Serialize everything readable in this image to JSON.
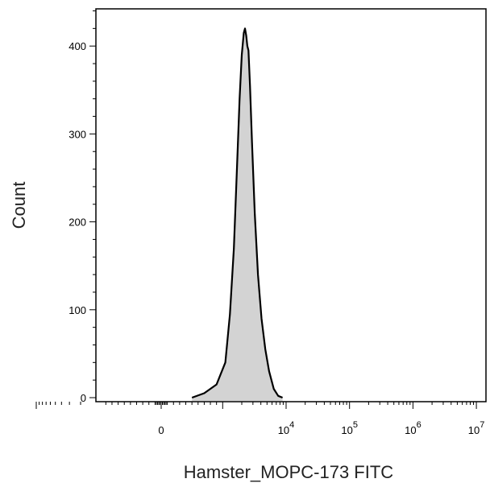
{
  "chart_data": {
    "type": "area",
    "title": "",
    "xlabel": "Hamster_MOPC-173 FITC",
    "ylabel": "Count",
    "x_scale": "biexponential",
    "ylim": [
      0,
      460
    ],
    "y_ticks": [
      {
        "value": 0,
        "label": "0"
      },
      {
        "value": 100,
        "label": "100"
      },
      {
        "value": 200,
        "label": "200"
      },
      {
        "value": 300,
        "label": "300"
      },
      {
        "value": 400,
        "label": "400"
      }
    ],
    "x_ticks": [
      {
        "value": 0,
        "label": "0",
        "base": "0",
        "exp": ""
      },
      {
        "value": 10000,
        "label": "10^4",
        "base": "10",
        "exp": "4"
      },
      {
        "value": 100000,
        "label": "10^5",
        "base": "10",
        "exp": "5"
      },
      {
        "value": 1000000,
        "label": "10^6",
        "base": "10",
        "exp": "6"
      },
      {
        "value": 10000000,
        "label": "10^7",
        "base": "10",
        "exp": "7"
      }
    ],
    "series": [
      {
        "fill": "#d3d3d3",
        "stroke": "#000000",
        "points": [
          [
            500,
            0
          ],
          [
            700,
            5
          ],
          [
            900,
            15
          ],
          [
            1100,
            40
          ],
          [
            1300,
            95
          ],
          [
            1500,
            170
          ],
          [
            1700,
            270
          ],
          [
            1850,
            340
          ],
          [
            2000,
            390
          ],
          [
            2150,
            415
          ],
          [
            2250,
            420
          ],
          [
            2350,
            412
          ],
          [
            2450,
            400
          ],
          [
            2550,
            395
          ],
          [
            2700,
            355
          ],
          [
            2900,
            290
          ],
          [
            3200,
            210
          ],
          [
            3600,
            140
          ],
          [
            4100,
            90
          ],
          [
            4700,
            55
          ],
          [
            5400,
            30
          ],
          [
            6400,
            10
          ],
          [
            7500,
            2
          ],
          [
            8800,
            0
          ]
        ]
      }
    ]
  }
}
